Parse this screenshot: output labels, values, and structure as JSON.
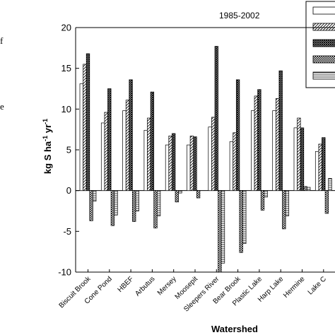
{
  "margin_text": [
    "f",
    "e"
  ],
  "chart_data": {
    "type": "bar",
    "title": "1985-2002",
    "xlabel": "Watershed",
    "ylabel": "kg S ha",
    "ylabel_sup1": "-1",
    "ylabel_mid": " yr",
    "ylabel_sup2": "-1",
    "ylim": [
      -10,
      20
    ],
    "yticks": [
      -10,
      -5,
      0,
      5,
      10,
      15,
      20
    ],
    "grid": false,
    "legend_position": "top-right",
    "categories": [
      "Biscuit Brook",
      "Cone Pond",
      "HBEF",
      "Arbutus",
      "Mersey",
      "Moosepit",
      "Sleepers River",
      "Bear Brook",
      "Plastic Lake",
      "Harp Lake",
      "Hermine",
      "Lake C"
    ],
    "series": [
      {
        "pattern": "white",
        "values": [
          13.1,
          8.3,
          9.8,
          7.4,
          5.6,
          5.6,
          7.8,
          6.0,
          9.8,
          9.8,
          7.7,
          4.8
        ]
      },
      {
        "pattern": "hatch-right",
        "values": [
          15.5,
          9.6,
          11.1,
          8.9,
          6.7,
          6.7,
          9.0,
          7.1,
          11.6,
          11.3,
          8.9,
          5.7
        ]
      },
      {
        "pattern": "hatch-dense",
        "values": [
          16.8,
          12.5,
          13.6,
          12.1,
          7.0,
          6.6,
          17.7,
          13.6,
          12.4,
          14.7,
          7.7,
          6.5
        ]
      },
      {
        "pattern": "checker",
        "values": [
          -3.7,
          -4.3,
          -3.8,
          -4.6,
          -1.4,
          -0.9,
          -10.0,
          -7.6,
          -2.4,
          -4.7,
          0.5,
          -2.8
        ]
      },
      {
        "pattern": "horizontal-lines",
        "values": [
          -1.3,
          -3.0,
          -2.5,
          -3.1,
          -0.3,
          0.0,
          -8.9,
          -6.5,
          -0.8,
          -3.1,
          0.4,
          1.5
        ]
      }
    ]
  }
}
